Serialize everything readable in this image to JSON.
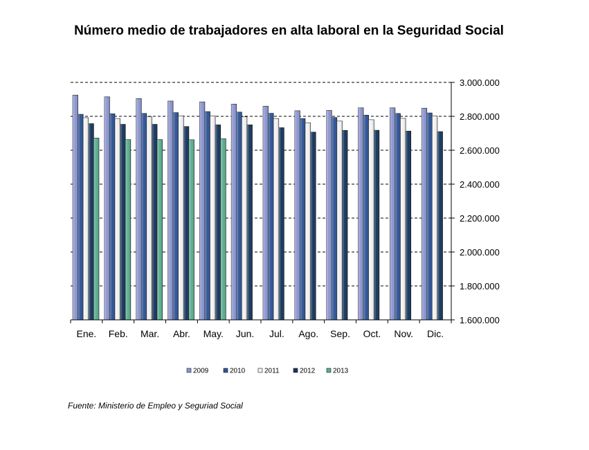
{
  "chart_data": {
    "type": "bar",
    "title": "Número medio de trabajadores en alta laboral en la Seguridad Social",
    "source": "Fuente: Ministerio de Empleo y Seguriad Social",
    "categories": [
      "Ene.",
      "Feb.",
      "Mar.",
      "Abr.",
      "May.",
      "Jun.",
      "Jul.",
      "Ago.",
      "Sep.",
      "Oct.",
      "Nov.",
      "Dic."
    ],
    "ylim": [
      1600000,
      3000000
    ],
    "yticks": [
      1600000,
      1800000,
      2000000,
      2200000,
      2400000,
      2600000,
      2800000,
      3000000
    ],
    "ytick_labels": [
      "1.600.000",
      "1.800.000",
      "2.000.000",
      "2.200.000",
      "2.400.000",
      "2.600.000",
      "2.800.000",
      "3.000.000"
    ],
    "y_axis_side": "right",
    "grid": "dashed horizontal",
    "legend_position": "bottom",
    "series": [
      {
        "name": "2009",
        "color": "#8C96D2",
        "values": [
          2925000,
          2915000,
          2905000,
          2890000,
          2885000,
          2872000,
          2860000,
          2833000,
          2835000,
          2850000,
          2850000,
          2848000
        ]
      },
      {
        "name": "2010",
        "color": "#2F5597",
        "values": [
          2812000,
          2815000,
          2817000,
          2822000,
          2828000,
          2825000,
          2818000,
          2787000,
          2793000,
          2807000,
          2817000,
          2820000
        ]
      },
      {
        "name": "2011",
        "color": "#F2F2F2",
        "values": [
          2792000,
          2787000,
          2798000,
          2803000,
          2803000,
          2797000,
          2787000,
          2762000,
          2772000,
          2780000,
          2788000,
          2802000
        ]
      },
      {
        "name": "2012",
        "color": "#17375E",
        "values": [
          2757000,
          2753000,
          2753000,
          2740000,
          2750000,
          2750000,
          2733000,
          2707000,
          2717000,
          2718000,
          2713000,
          2710000
        ]
      },
      {
        "name": "2013",
        "color": "#5BAE8F",
        "values": [
          2672000,
          2663000,
          2663000,
          2662000,
          2668000,
          null,
          null,
          null,
          null,
          null,
          null,
          null
        ]
      }
    ]
  }
}
